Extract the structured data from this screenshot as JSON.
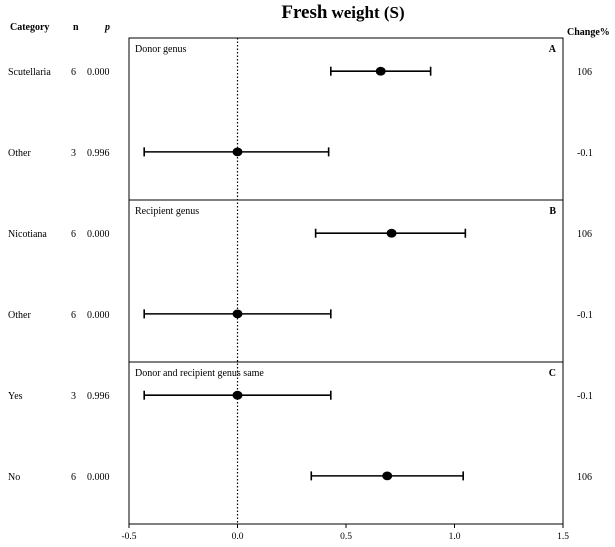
{
  "chart_data": {
    "type": "forest",
    "title_main": "Fresh",
    "title_rest": "weight (S)",
    "col_headers": {
      "category": "Category",
      "n": "n",
      "p": "p",
      "change": "Change%"
    },
    "xlim": [
      -0.5,
      1.5
    ],
    "x_ticks": [
      "-0.5",
      "0.0",
      "0.5",
      "1.0",
      "1.5"
    ],
    "reference_line": 0.0,
    "panels": [
      {
        "title": "Donor genus",
        "letter": "A",
        "rows": [
          {
            "category": "Scutellaria",
            "n": "6",
            "p": "0.000",
            "estimate": 0.66,
            "ci_low": 0.43,
            "ci_high": 0.89,
            "change": "106"
          },
          {
            "category": "Other",
            "n": "3",
            "p": "0.996",
            "estimate": 0.0,
            "ci_low": -0.43,
            "ci_high": 0.42,
            "change": "-0.1"
          }
        ]
      },
      {
        "title": "Recipient genus",
        "letter": "B",
        "rows": [
          {
            "category": "Nicotiana",
            "n": "6",
            "p": "0.000",
            "estimate": 0.71,
            "ci_low": 0.36,
            "ci_high": 1.05,
            "change": "106"
          },
          {
            "category": "Other",
            "n": "6",
            "p": "0.000",
            "estimate": 0.0,
            "ci_low": -0.43,
            "ci_high": 0.43,
            "change": "-0.1"
          }
        ]
      },
      {
        "title": "Donor and recipient genus same",
        "letter": "C",
        "rows": [
          {
            "category": "Yes",
            "n": "3",
            "p": "0.996",
            "estimate": 0.0,
            "ci_low": -0.43,
            "ci_high": 0.43,
            "change": "-0.1"
          },
          {
            "category": "No",
            "n": "6",
            "p": "0.000",
            "estimate": 0.69,
            "ci_low": 0.34,
            "ci_high": 1.04,
            "change": "106"
          }
        ]
      }
    ]
  }
}
